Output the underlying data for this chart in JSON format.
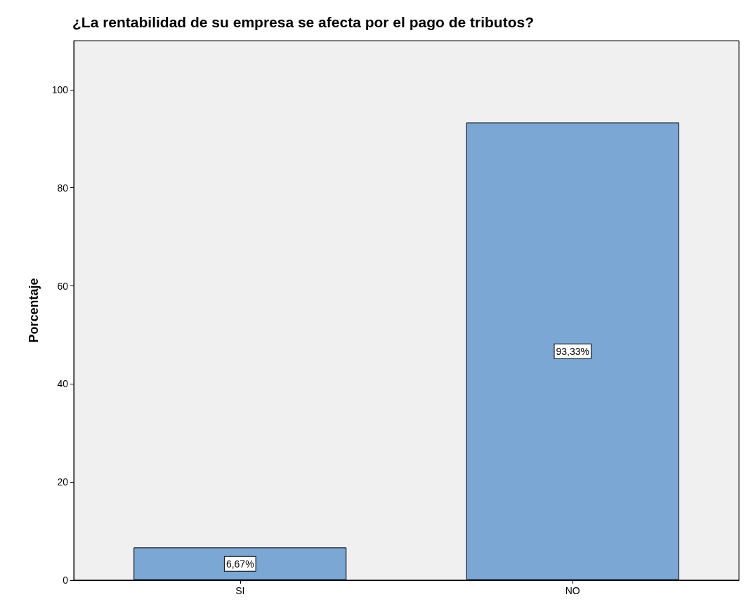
{
  "chart_data": {
    "type": "bar",
    "title": "¿La rentabilidad de su empresa se afecta por el pago de tributos?",
    "ylabel": "Porcentaje",
    "categories": [
      "SI",
      "NO"
    ],
    "values": [
      6.67,
      93.33
    ],
    "value_labels": [
      "6,67%",
      "93,33%"
    ],
    "color": "#7ba7d4",
    "ylim": [
      0,
      110
    ],
    "yticks": [
      0,
      20,
      40,
      60,
      80,
      100
    ],
    "grid": false
  }
}
